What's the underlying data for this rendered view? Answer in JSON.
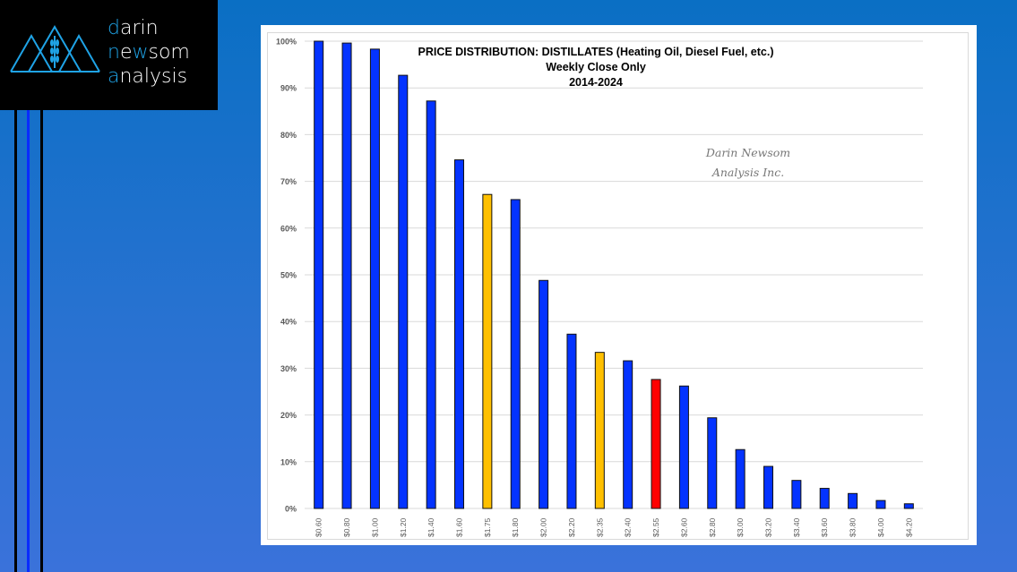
{
  "logo": {
    "line1_hl": "d",
    "line1": "arin",
    "line2_a": "n",
    "line2_b": "e",
    "line2_hl": "w",
    "line2_c": "som",
    "line3_hl": "a",
    "line3": "nalysis"
  },
  "chart_data": {
    "type": "bar",
    "title": "PRICE DISTRIBUTION: DISTILLATES (Heating Oil, Diesel Fuel, etc.)",
    "subtitle": "Weekly Close Only",
    "period": "2014-2024",
    "watermark": [
      "Darin Newsom",
      "Analysis Inc."
    ],
    "xlabel": "",
    "ylabel": "",
    "ylim": [
      0,
      100
    ],
    "yticks": [
      "0%",
      "10%",
      "20%",
      "30%",
      "40%",
      "50%",
      "60%",
      "70%",
      "80%",
      "90%",
      "100%"
    ],
    "grid": true,
    "categories": [
      "$0.60",
      "$0.80",
      "$1.00",
      "$1.20",
      "$1.40",
      "$1.60",
      "$1.75",
      "$1.80",
      "$2.00",
      "$2.20",
      "$2.35",
      "$2.40",
      "$2.55",
      "$2.60",
      "$2.80",
      "$3.00",
      "$3.20",
      "$3.40",
      "$3.60",
      "$3.80",
      "$4.00",
      "$4.20"
    ],
    "values": [
      100,
      99.6,
      98.3,
      92.7,
      87.2,
      74.6,
      67.2,
      66.1,
      48.8,
      37.3,
      33.4,
      31.6,
      27.6,
      26.2,
      19.4,
      12.6,
      9.0,
      6.0,
      4.3,
      3.2,
      1.7,
      1.0
    ],
    "bar_colors": [
      "#0433ff",
      "#0433ff",
      "#0433ff",
      "#0433ff",
      "#0433ff",
      "#0433ff",
      "#ffc000",
      "#0433ff",
      "#0433ff",
      "#0433ff",
      "#ffc000",
      "#0433ff",
      "#ff0000",
      "#0433ff",
      "#0433ff",
      "#0433ff",
      "#0433ff",
      "#0433ff",
      "#0433ff",
      "#0433ff",
      "#0433ff",
      "#0433ff"
    ]
  }
}
